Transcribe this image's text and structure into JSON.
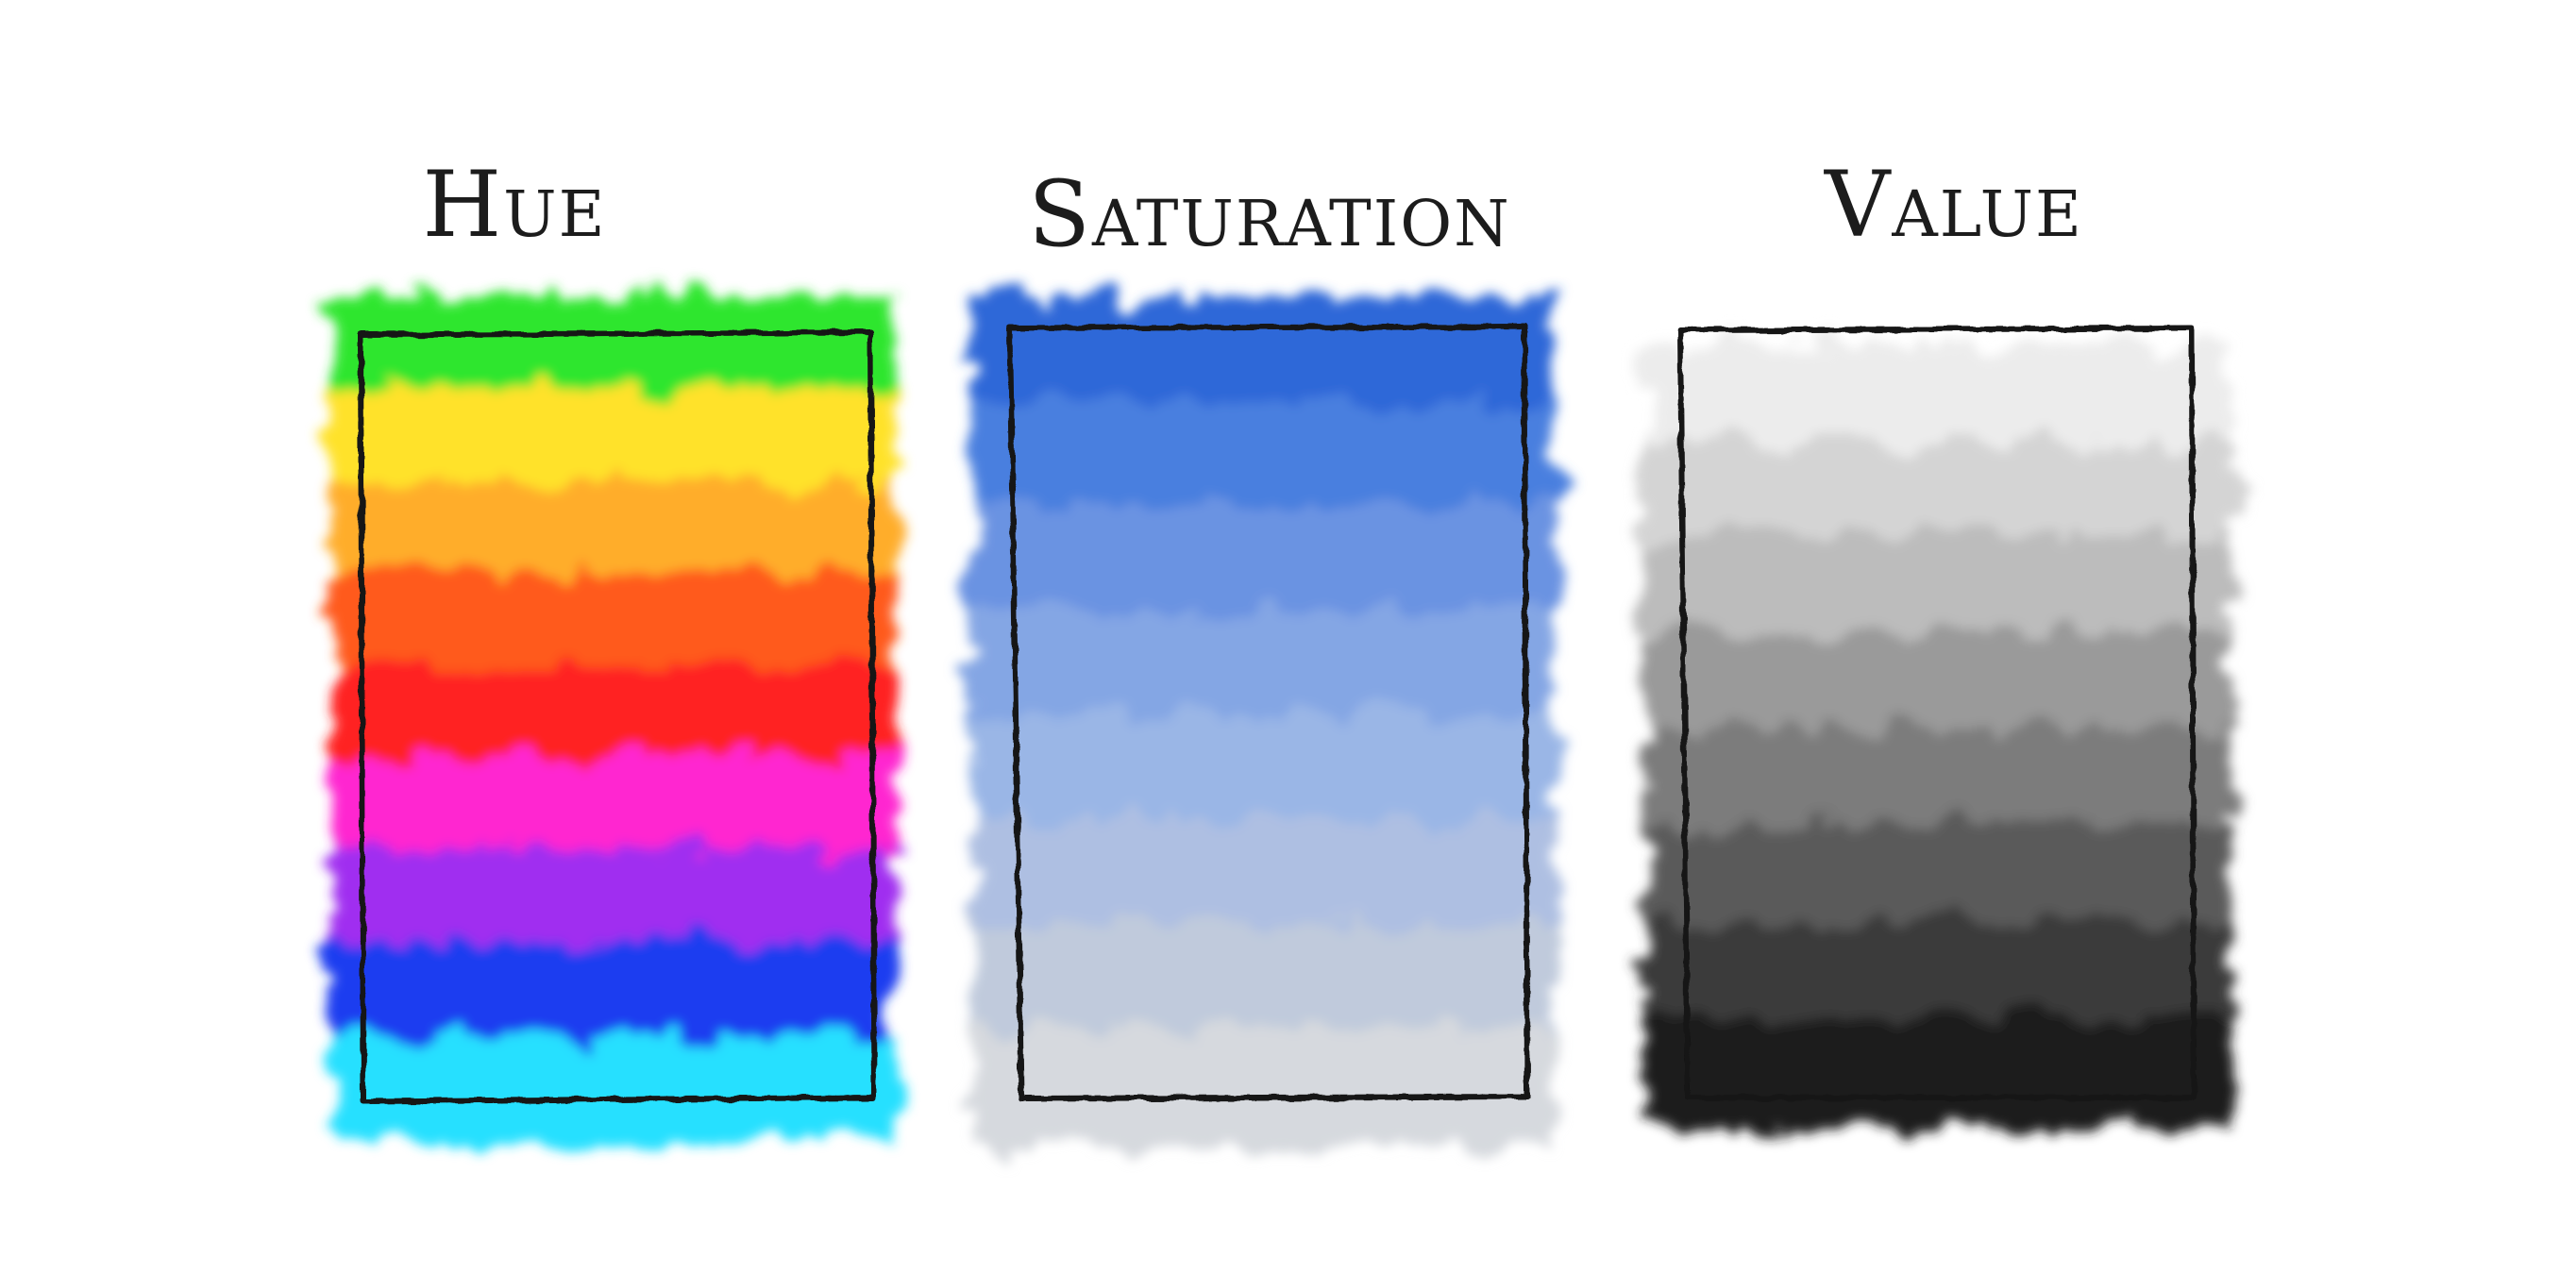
{
  "panels": [
    {
      "id": "hue",
      "title": "Hue",
      "swatch_colors": [
        "#2ee62e",
        "#ffe22a",
        "#ffad2a",
        "#ff5a1a",
        "#ff2222",
        "#ff25d0",
        "#a02ef0",
        "#1a3cf0",
        "#25e0ff"
      ]
    },
    {
      "id": "saturation",
      "title": "Saturation",
      "swatch_colors": [
        "#2f68d8",
        "#4a7fdf",
        "#6a93e2",
        "#84a6e4",
        "#9ab6e6",
        "#aebfe2",
        "#c0cadc",
        "#d6d9de"
      ]
    },
    {
      "id": "value",
      "title": "Value",
      "swatch_colors": [
        "#ececec",
        "#d4d4d4",
        "#bcbcbc",
        "#9a9a9a",
        "#7c7c7c",
        "#5a5a5a",
        "#3a3a3a",
        "#1c1c1c"
      ]
    }
  ]
}
